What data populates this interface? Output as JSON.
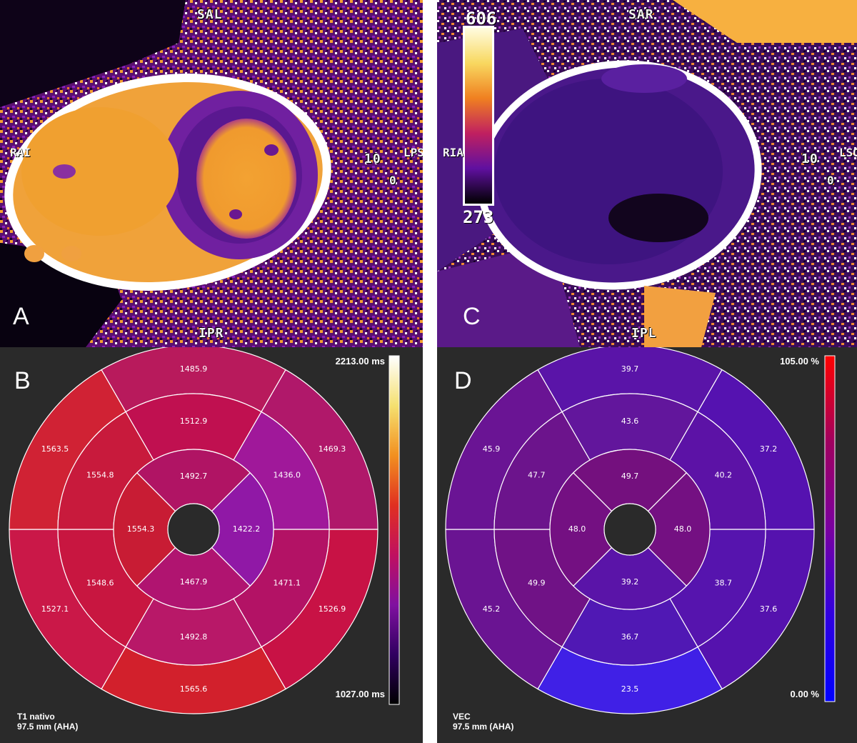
{
  "panels": {
    "a": {
      "letter": "A",
      "labels": {
        "top": "SAL",
        "bottom": "IPR",
        "left": "RAI",
        "right_number": "10",
        "right_letters": "LPS",
        "right_small": "0"
      }
    },
    "c": {
      "letter": "C",
      "labels": {
        "top": "SAR",
        "bottom": "IPL",
        "left": "RIA",
        "right_number": "10",
        "right_letters": "LSO",
        "right_small": "0"
      },
      "colorbar": {
        "max": "606",
        "min": "273"
      }
    },
    "b": {
      "letter": "B",
      "colorbar": {
        "max": "2213.00 ms",
        "min": "1027.00 ms",
        "colors": [
          "#ffffff",
          "#f5e070",
          "#f29020",
          "#e03020",
          "#c01060",
          "#8010a0",
          "#300060",
          "#000000"
        ]
      },
      "caption_line1": "T1 nativo",
      "caption_line2": "97.5 mm (AHA)",
      "bullseye": {
        "basal": [
          "1485.9",
          "1469.3",
          "1526.9",
          "1565.6",
          "1527.1",
          "1563.5"
        ],
        "mid": [
          "1512.9",
          "1436.0",
          "1471.1",
          "1492.8",
          "1548.6",
          "1554.8"
        ],
        "apical": [
          "1492.7",
          "1422.2",
          "1467.9",
          "1554.3"
        ],
        "basal_colors": [
          "#b81a5c",
          "#b0186a",
          "#c81245",
          "#d2202c",
          "#ca1848",
          "#d02234"
        ],
        "mid_colors": [
          "#c01050",
          "#a0189a",
          "#b31265",
          "#b81868",
          "#c81640",
          "#c81a3c"
        ],
        "apical_colors": [
          "#b01464",
          "#9018a6",
          "#b01470",
          "#c81c34"
        ]
      }
    },
    "d": {
      "letter": "D",
      "colorbar": {
        "max": "105.00 %",
        "min": "0.00 %",
        "colors": [
          "#ff0000",
          "#a00060",
          "#7a00a0",
          "#3000e0",
          "#0000ff"
        ]
      },
      "caption_line1": "VEC",
      "caption_line2": "97.5 mm (AHA)",
      "bullseye": {
        "basal": [
          "39.7",
          "37.2",
          "37.6",
          "23.5",
          "45.2",
          "45.9"
        ],
        "mid": [
          "43.6",
          "40.2",
          "38.7",
          "36.7",
          "49.9",
          "47.7"
        ],
        "apical": [
          "49.7",
          "48.0",
          "39.2",
          "48.0"
        ],
        "basal_colors": [
          "#5a14a8",
          "#5512b0",
          "#5512ae",
          "#4020e6",
          "#6a1492",
          "#6a1494"
        ],
        "mid_colors": [
          "#62169c",
          "#5c12a6",
          "#5614ae",
          "#5018b4",
          "#701286",
          "#6c148c"
        ],
        "apical_colors": [
          "#74107e",
          "#741082",
          "#5a14a8",
          "#741082"
        ]
      }
    }
  }
}
